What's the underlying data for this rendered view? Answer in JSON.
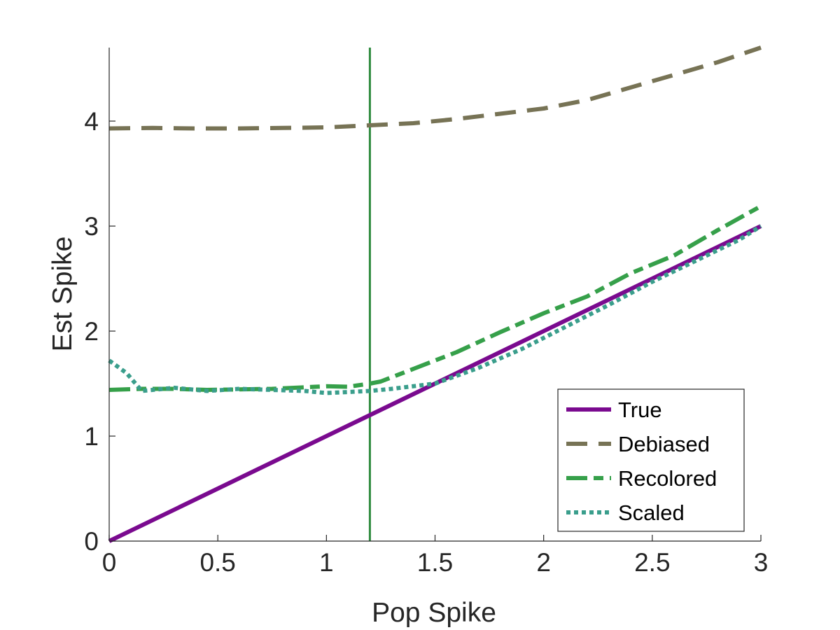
{
  "chart_data": {
    "type": "line",
    "xlabel": "Pop Spike",
    "ylabel": "Est Spike",
    "xlim": [
      0,
      3
    ],
    "ylim": [
      0,
      4.7
    ],
    "xticks": [
      0,
      0.5,
      1,
      1.5,
      2,
      2.5,
      3
    ],
    "xtick_labels": [
      "0",
      "0.5",
      "1",
      "1.5",
      "2",
      "2.5",
      "3"
    ],
    "yticks": [
      0,
      1,
      2,
      3,
      4
    ],
    "ytick_labels": [
      "0",
      "1",
      "2",
      "3",
      "4"
    ],
    "grid": false,
    "legend_position": "bottom-right",
    "vertical_line": {
      "x": 1.2,
      "color": "#2e8b3e"
    },
    "series": [
      {
        "name": "True",
        "style": "solid",
        "color": "#7a0a8f",
        "x": [
          0,
          3
        ],
        "y": [
          0,
          3
        ]
      },
      {
        "name": "Debiased",
        "style": "dashed",
        "color": "#777355",
        "x": [
          0,
          0.2,
          0.4,
          0.6,
          0.8,
          1.0,
          1.2,
          1.4,
          1.6,
          1.8,
          2.0,
          2.2,
          2.4,
          2.6,
          2.8,
          3.0
        ],
        "y": [
          3.93,
          3.935,
          3.93,
          3.93,
          3.935,
          3.94,
          3.96,
          3.98,
          4.02,
          4.07,
          4.12,
          4.2,
          4.32,
          4.44,
          4.56,
          4.7
        ]
      },
      {
        "name": "Recolored",
        "style": "dashdot",
        "color": "#36a04a",
        "x": [
          0,
          0.15,
          0.3,
          0.45,
          0.6,
          0.75,
          0.9,
          1.0,
          1.1,
          1.2,
          1.25,
          1.4,
          1.6,
          1.8,
          2.0,
          2.2,
          2.4,
          2.6,
          2.8,
          3.0
        ],
        "y": [
          1.44,
          1.45,
          1.45,
          1.44,
          1.445,
          1.45,
          1.465,
          1.475,
          1.47,
          1.5,
          1.52,
          1.64,
          1.8,
          1.99,
          2.17,
          2.33,
          2.55,
          2.72,
          2.96,
          3.19
        ]
      },
      {
        "name": "Scaled",
        "style": "dotted",
        "color": "#3a9e8c",
        "x": [
          0,
          0.08,
          0.15,
          0.3,
          0.45,
          0.6,
          0.75,
          0.9,
          1.0,
          1.1,
          1.2,
          1.3,
          1.5,
          1.7,
          1.9,
          2.1,
          2.3,
          2.5,
          2.7,
          2.9,
          3.0
        ],
        "y": [
          1.72,
          1.6,
          1.43,
          1.46,
          1.43,
          1.45,
          1.44,
          1.43,
          1.41,
          1.42,
          1.43,
          1.45,
          1.5,
          1.65,
          1.83,
          2.04,
          2.25,
          2.47,
          2.67,
          2.87,
          3.0
        ]
      }
    ]
  }
}
